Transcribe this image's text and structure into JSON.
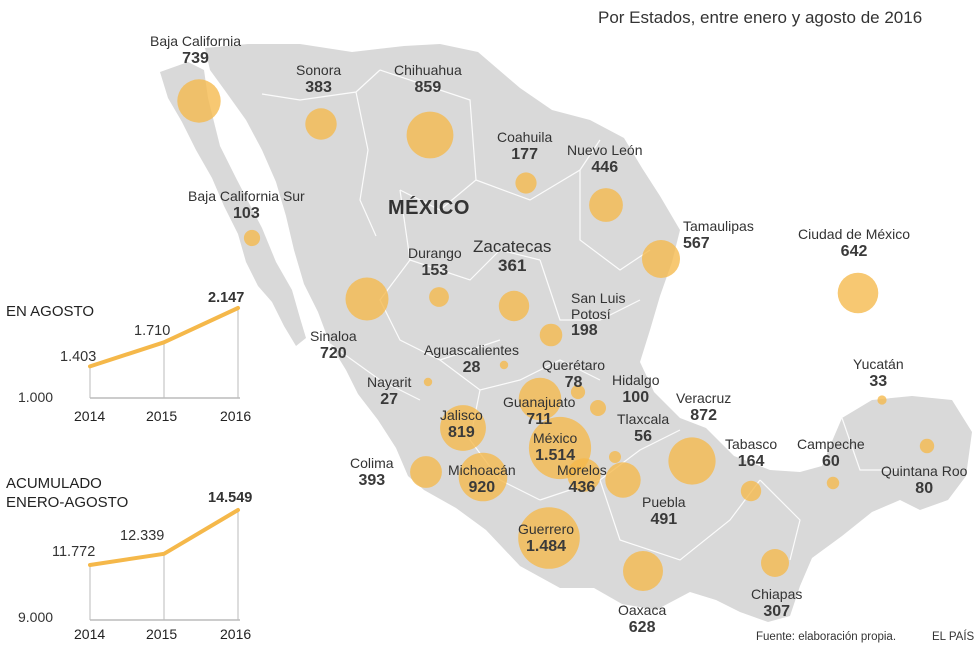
{
  "subtitle": "Por Estados, entre enero y agosto de 2016",
  "country_label": "MÉXICO",
  "source": "Fuente: elaboración propia.",
  "brand": "EL PAÍS",
  "colors": {
    "bubble": "#f5b84a",
    "land": "#d9d9d9",
    "border": "#ffffff",
    "line": "#f5b84a"
  },
  "states": [
    {
      "name": "Baja California",
      "value": "739",
      "count": 739
    },
    {
      "name": "Sonora",
      "value": "383",
      "count": 383
    },
    {
      "name": "Chihuahua",
      "value": "859",
      "count": 859
    },
    {
      "name": "Coahuila",
      "value": "177",
      "count": 177
    },
    {
      "name": "Nuevo León",
      "value": "446",
      "count": 446
    },
    {
      "name": "Baja California Sur",
      "value": "103",
      "count": 103
    },
    {
      "name": "Tamaulipas",
      "value": "567",
      "count": 567
    },
    {
      "name": "Ciudad de México",
      "value": "642",
      "count": 642
    },
    {
      "name": "Durango",
      "value": "153",
      "count": 153
    },
    {
      "name": "Zacatecas",
      "value": "361",
      "count": 361
    },
    {
      "name": "Sinaloa",
      "value": "720",
      "count": 720
    },
    {
      "name": "San Luis Potosí",
      "value": "198",
      "count": 198
    },
    {
      "name": "Aguascalientes",
      "value": "28",
      "count": 28
    },
    {
      "name": "Nayarit",
      "value": "27",
      "count": 27
    },
    {
      "name": "Querétaro",
      "value": "78",
      "count": 78
    },
    {
      "name": "Hidalgo",
      "value": "100",
      "count": 100
    },
    {
      "name": "Guanajuato",
      "value": "711",
      "count": 711
    },
    {
      "name": "Yucatán",
      "value": "33",
      "count": 33
    },
    {
      "name": "Veracruz",
      "value": "872",
      "count": 872
    },
    {
      "name": "Jalisco",
      "value": "819",
      "count": 819
    },
    {
      "name": "Tlaxcala",
      "value": "56",
      "count": 56
    },
    {
      "name": "México",
      "value": "1.514",
      "count": 1514
    },
    {
      "name": "Colima",
      "value": "393",
      "count": 393
    },
    {
      "name": "Michoacán",
      "value": "920",
      "count": 920
    },
    {
      "name": "Morelos",
      "value": "436",
      "count": 436
    },
    {
      "name": "Tabasco",
      "value": "164",
      "count": 164
    },
    {
      "name": "Campeche",
      "value": "60",
      "count": 60
    },
    {
      "name": "Quintana Roo",
      "value": "80",
      "count": 80
    },
    {
      "name": "Puebla",
      "value": "491",
      "count": 491
    },
    {
      "name": "Guerrero",
      "value": "1.484",
      "count": 1484
    },
    {
      "name": "Oaxaca",
      "value": "628",
      "count": 628
    },
    {
      "name": "Chiapas",
      "value": "307",
      "count": 307
    }
  ],
  "chart_data": [
    {
      "type": "line",
      "title": "EN AGOSTO",
      "x": [
        "2014",
        "2015",
        "2016"
      ],
      "values": [
        1403,
        1710,
        2147
      ],
      "value_labels": [
        "1.403",
        "1.710",
        "2.147"
      ],
      "ylim": [
        1000,
        2147
      ],
      "baseline_label": "1.000"
    },
    {
      "type": "line",
      "title_lines": [
        "ACUMULADO",
        "ENERO-AGOSTO"
      ],
      "x": [
        "2014",
        "2015",
        "2016"
      ],
      "values": [
        11772,
        12339,
        14549
      ],
      "value_labels": [
        "11.772",
        "12.339",
        "14.549"
      ],
      "ylim": [
        9000,
        14549
      ],
      "baseline_label": "9.000"
    }
  ]
}
